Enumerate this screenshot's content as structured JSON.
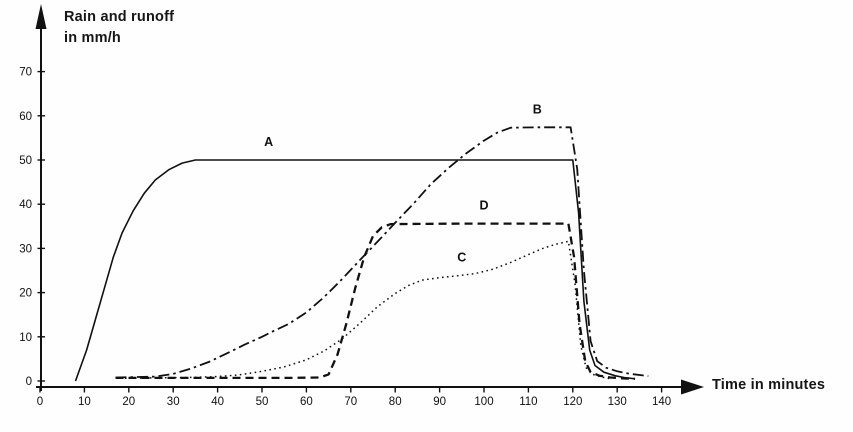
{
  "chart": {
    "y_axis_title_line1": "Rain and runoff",
    "y_axis_title_line2": "in mm/h",
    "x_axis_title": "Time in minutes"
  },
  "chart_data": {
    "type": "line",
    "title": "",
    "ylabel": "Rain and runoff in mm/h",
    "xlabel": "Time in minutes",
    "xlim": [
      0,
      148
    ],
    "ylim": [
      0,
      76
    ],
    "x_ticks": [
      0,
      10,
      20,
      30,
      40,
      50,
      60,
      70,
      80,
      90,
      100,
      110,
      120,
      130,
      140
    ],
    "y_ticks": [
      0,
      10,
      20,
      30,
      40,
      50,
      60,
      70
    ],
    "grid": false,
    "legend": "inline-curve-labels",
    "line_color": "#111111",
    "series": [
      {
        "name": "A",
        "line_style": "solid",
        "label_pos": [
          51.5,
          53.2
        ],
        "points": [
          [
            8,
            0
          ],
          [
            10.5,
            7
          ],
          [
            12.5,
            14
          ],
          [
            14.5,
            21
          ],
          [
            16.5,
            28
          ],
          [
            18.5,
            33.5
          ],
          [
            21,
            38.5
          ],
          [
            23.5,
            42.5
          ],
          [
            26,
            45.5
          ],
          [
            29,
            47.8
          ],
          [
            32,
            49.3
          ],
          [
            35,
            50
          ],
          [
            60,
            50
          ],
          [
            90,
            50
          ],
          [
            120,
            50
          ],
          [
            121.3,
            38
          ],
          [
            122.5,
            18
          ],
          [
            123.8,
            7
          ],
          [
            125,
            3.5
          ],
          [
            127,
            2
          ],
          [
            129.5,
            1.2
          ],
          [
            131.5,
            0.8
          ],
          [
            134,
            0.5
          ]
        ]
      },
      {
        "name": "B",
        "line_style": "dash-dot",
        "label_pos": [
          112,
          60.5
        ],
        "points": [
          [
            17,
            0.8
          ],
          [
            22,
            0.9
          ],
          [
            26,
            1
          ],
          [
            30,
            1.6
          ],
          [
            34,
            2.8
          ],
          [
            38,
            4.3
          ],
          [
            42,
            6.2
          ],
          [
            46,
            8.2
          ],
          [
            50,
            10
          ],
          [
            53,
            11.5
          ],
          [
            56,
            12.9
          ],
          [
            60,
            15.5
          ],
          [
            64,
            19
          ],
          [
            68,
            23
          ],
          [
            72,
            27.3
          ],
          [
            76,
            31.5
          ],
          [
            80,
            35.8
          ],
          [
            84,
            40
          ],
          [
            88,
            44.5
          ],
          [
            92,
            48.2
          ],
          [
            96,
            51.5
          ],
          [
            100,
            54.4
          ],
          [
            103,
            56.2
          ],
          [
            106,
            57.3
          ],
          [
            112,
            57.4
          ],
          [
            119.5,
            57.4
          ],
          [
            121,
            48
          ],
          [
            122.5,
            25
          ],
          [
            124,
            9
          ],
          [
            125.5,
            4.5
          ],
          [
            127.5,
            3
          ],
          [
            130,
            2.2
          ],
          [
            133,
            1.6
          ],
          [
            137,
            1.1
          ]
        ]
      },
      {
        "name": "C",
        "line_style": "dotted",
        "label_pos": [
          95,
          27
        ],
        "points": [
          [
            18,
            0.6
          ],
          [
            25,
            0.7
          ],
          [
            33,
            0.8
          ],
          [
            40,
            1
          ],
          [
            45,
            1.4
          ],
          [
            50,
            2.2
          ],
          [
            55,
            3.2
          ],
          [
            60,
            4.8
          ],
          [
            64,
            6.8
          ],
          [
            68,
            9.5
          ],
          [
            72,
            13
          ],
          [
            76,
            16.8
          ],
          [
            80,
            19.8
          ],
          [
            83,
            21.6
          ],
          [
            86,
            22.8
          ],
          [
            90,
            23.4
          ],
          [
            94,
            23.8
          ],
          [
            98,
            24.3
          ],
          [
            102,
            25.3
          ],
          [
            106,
            26.8
          ],
          [
            110,
            28.6
          ],
          [
            113,
            29.9
          ],
          [
            116,
            30.9
          ],
          [
            119,
            31.6
          ],
          [
            120.5,
            22
          ],
          [
            121.8,
            8
          ],
          [
            123,
            3
          ],
          [
            124.5,
            1.5
          ],
          [
            126.5,
            0.9
          ],
          [
            128.5,
            0.5
          ]
        ]
      },
      {
        "name": "D",
        "line_style": "dashed",
        "label_pos": [
          100,
          38.8
        ],
        "points": [
          [
            17,
            0.7
          ],
          [
            30,
            0.7
          ],
          [
            45,
            0.7
          ],
          [
            56,
            0.7
          ],
          [
            63,
            0.8
          ],
          [
            65,
            1.5
          ],
          [
            67,
            6
          ],
          [
            69,
            13
          ],
          [
            71,
            21
          ],
          [
            73,
            28
          ],
          [
            75,
            32.8
          ],
          [
            77,
            34.8
          ],
          [
            79,
            35.5
          ],
          [
            95,
            35.6
          ],
          [
            119,
            35.6
          ],
          [
            120.3,
            28
          ],
          [
            121.5,
            13
          ],
          [
            122.8,
            4.5
          ],
          [
            124,
            2
          ],
          [
            126,
            1.2
          ],
          [
            128.5,
            0.8
          ],
          [
            131,
            0.6
          ],
          [
            134,
            0.5
          ]
        ]
      }
    ]
  }
}
